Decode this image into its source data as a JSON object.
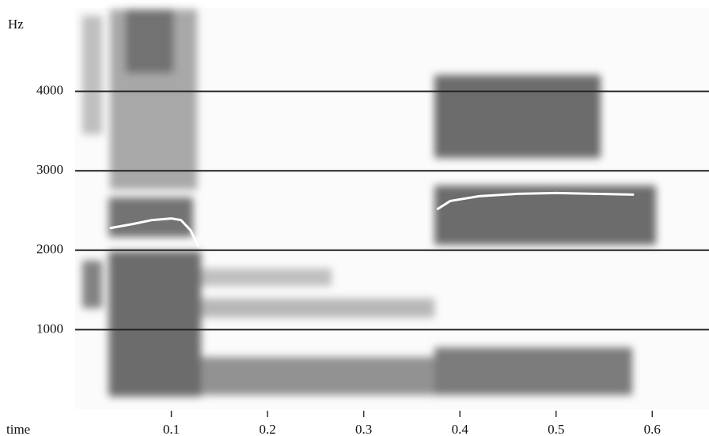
{
  "chart_data": {
    "type": "spectrogram",
    "x_label": "time",
    "y_label": "Hz",
    "xlim": [
      0,
      0.659
    ],
    "ylim": [
      0,
      5050
    ],
    "xticks": [
      0.1,
      0.2,
      0.3,
      0.4,
      0.5,
      0.6
    ],
    "yticks": [
      1000,
      2000,
      3000,
      4000
    ],
    "grid": true,
    "grid_color": "#222222",
    "series": [
      {
        "color": "#ffffff",
        "x": [
          0.037,
          0.06,
          0.08,
          0.1,
          0.11,
          0.12,
          0.128
        ],
        "values": [
          2280,
          2330,
          2380,
          2400,
          2380,
          2250,
          2050
        ]
      },
      {
        "color": "#ffffff",
        "x": [
          0.377,
          0.39,
          0.42,
          0.46,
          0.5,
          0.54,
          0.58
        ],
        "values": [
          2520,
          2620,
          2680,
          2710,
          2720,
          2710,
          2700
        ]
      }
    ]
  }
}
